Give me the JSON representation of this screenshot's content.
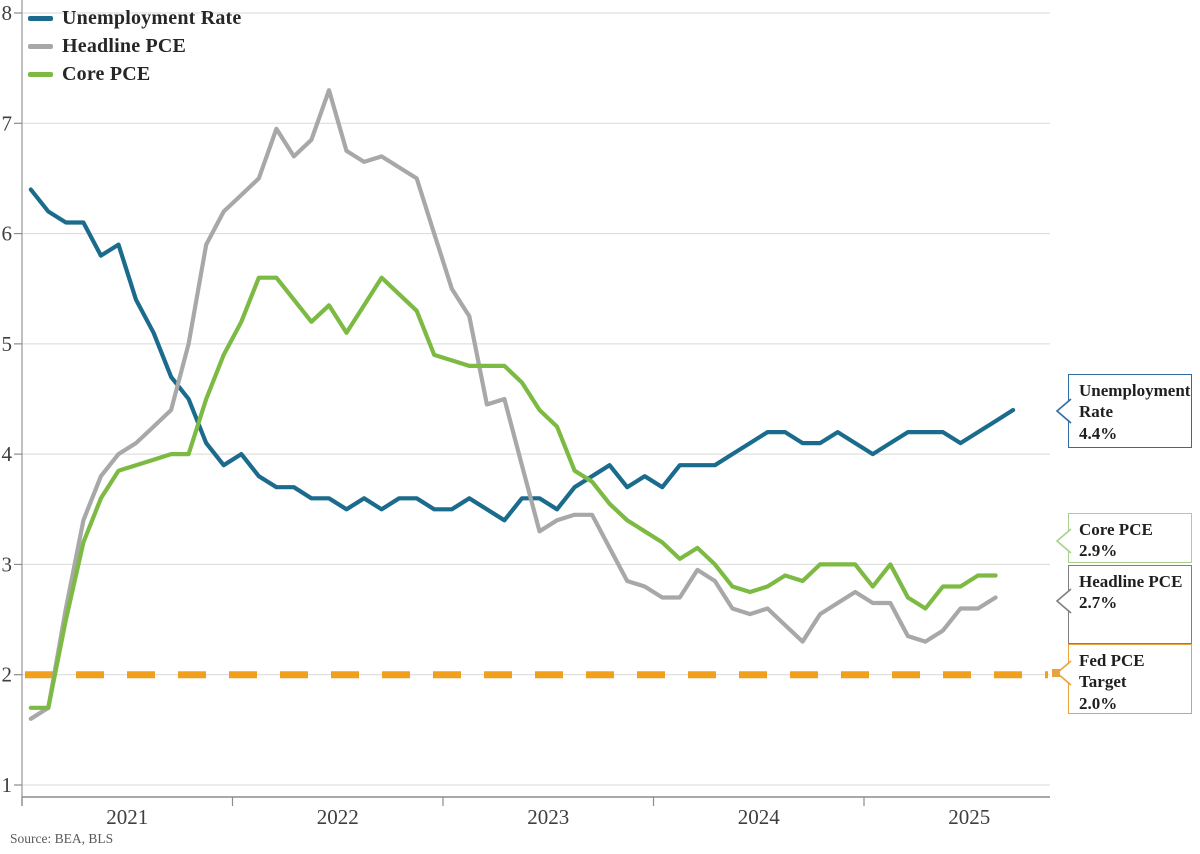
{
  "chart_data": {
    "type": "line",
    "title": "",
    "source": "Source: BEA, BLS",
    "x_axis": {
      "start_month": "2021-01",
      "tick_years": [
        "2021",
        "2022",
        "2023",
        "2024",
        "2025"
      ],
      "frequency": "monthly"
    },
    "ylim": [
      1,
      8
    ],
    "y_ticks": [
      1,
      2,
      3,
      4,
      5,
      6,
      7,
      8
    ],
    "grid": "horizontal",
    "legend_position": "top-left",
    "series": [
      {
        "name": "Unemployment Rate",
        "color": "#1a6b8c",
        "end_month": "2025-09",
        "values": [
          6.4,
          6.2,
          6.1,
          6.1,
          5.8,
          5.9,
          5.4,
          5.1,
          4.7,
          4.5,
          4.1,
          3.9,
          4.0,
          3.8,
          3.7,
          3.7,
          3.6,
          3.6,
          3.5,
          3.6,
          3.5,
          3.6,
          3.6,
          3.5,
          3.5,
          3.6,
          3.5,
          3.4,
          3.6,
          3.6,
          3.5,
          3.7,
          3.8,
          3.9,
          3.7,
          3.8,
          3.7,
          3.9,
          3.9,
          3.9,
          4.0,
          4.1,
          4.2,
          4.2,
          4.1,
          4.1,
          4.2,
          4.1,
          4.0,
          4.1,
          4.2,
          4.2,
          4.2,
          4.1,
          4.2,
          4.3,
          4.4
        ]
      },
      {
        "name": "Headline PCE",
        "color": "#a8a8a8",
        "end_month": "2025-08",
        "values": [
          1.6,
          1.7,
          2.6,
          3.4,
          3.8,
          4.0,
          4.1,
          4.25,
          4.4,
          5.0,
          5.9,
          6.2,
          6.35,
          6.5,
          6.95,
          6.7,
          6.85,
          7.3,
          6.75,
          6.65,
          6.7,
          6.6,
          6.5,
          6.0,
          5.5,
          5.25,
          4.45,
          4.5,
          3.9,
          3.3,
          3.4,
          3.45,
          3.45,
          3.15,
          2.85,
          2.8,
          2.7,
          2.7,
          2.95,
          2.85,
          2.6,
          2.55,
          2.6,
          2.45,
          2.3,
          2.55,
          2.65,
          2.75,
          2.65,
          2.65,
          2.35,
          2.3,
          2.4,
          2.6,
          2.6,
          2.7
        ]
      },
      {
        "name": "Core PCE",
        "color": "#7cba44",
        "end_month": "2025-08",
        "values": [
          1.7,
          1.7,
          2.5,
          3.2,
          3.6,
          3.85,
          3.9,
          3.95,
          4.0,
          4.0,
          4.5,
          4.9,
          5.2,
          5.6,
          5.6,
          5.4,
          5.2,
          5.35,
          5.1,
          5.35,
          5.6,
          5.45,
          5.3,
          4.9,
          4.85,
          4.8,
          4.8,
          4.8,
          4.65,
          4.4,
          4.25,
          3.85,
          3.75,
          3.55,
          3.4,
          3.3,
          3.2,
          3.05,
          3.15,
          3.0,
          2.8,
          2.75,
          2.8,
          2.9,
          2.85,
          3.0,
          3.0,
          3.0,
          2.8,
          3.0,
          2.7,
          2.6,
          2.8,
          2.8,
          2.9,
          2.9
        ]
      }
    ],
    "reference_line": {
      "label": "Fed PCE Target",
      "value": 2.0,
      "style": "dashed",
      "color": "#f0a01c"
    },
    "callouts": [
      {
        "title": "Unemployment Rate",
        "value": "4.4%",
        "border_color": "#2e6da4",
        "arrow_marker": "chevron"
      },
      {
        "title": "Core PCE",
        "value": "2.9%",
        "border_color": "#a9d18e",
        "arrow_marker": "chevron"
      },
      {
        "title": "Headline PCE",
        "value": "2.7%",
        "border_color": "#7f7f7f",
        "arrow_marker": "chevron"
      },
      {
        "title": "Fed PCE Target",
        "value": "2.0%",
        "border_color": "#e8a33d",
        "arrow_marker": "square"
      }
    ]
  }
}
